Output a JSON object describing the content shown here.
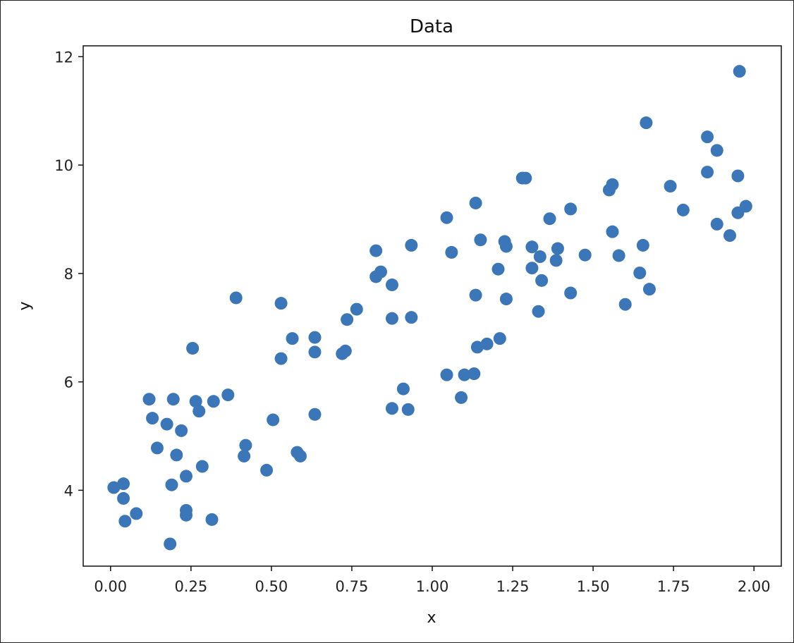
{
  "chart_data": {
    "type": "scatter",
    "title": "Data",
    "xlabel": "x",
    "ylabel": "y",
    "xlim": [
      -0.085,
      2.085
    ],
    "ylim": [
      2.6,
      12.2
    ],
    "x_ticks": [
      0.0,
      0.25,
      0.5,
      0.75,
      1.0,
      1.25,
      1.5,
      1.75,
      2.0
    ],
    "x_tick_labels": [
      "0.00",
      "0.25",
      "0.50",
      "0.75",
      "1.00",
      "1.25",
      "1.50",
      "1.75",
      "2.00"
    ],
    "y_ticks": [
      4,
      6,
      8,
      10,
      12
    ],
    "y_tick_labels": [
      "4",
      "6",
      "8",
      "10",
      "12"
    ],
    "grid": false,
    "marker_color": "#3a76b8",
    "series": [
      {
        "points": [
          [
            0.01,
            4.05
          ],
          [
            0.04,
            4.12
          ],
          [
            0.04,
            3.85
          ],
          [
            0.045,
            3.43
          ],
          [
            0.08,
            3.57
          ],
          [
            0.12,
            5.68
          ],
          [
            0.13,
            5.33
          ],
          [
            0.145,
            4.78
          ],
          [
            0.175,
            5.22
          ],
          [
            0.185,
            3.01
          ],
          [
            0.19,
            4.1
          ],
          [
            0.195,
            5.68
          ],
          [
            0.205,
            4.65
          ],
          [
            0.22,
            5.1
          ],
          [
            0.235,
            4.26
          ],
          [
            0.235,
            3.63
          ],
          [
            0.235,
            3.54
          ],
          [
            0.255,
            6.62
          ],
          [
            0.265,
            5.64
          ],
          [
            0.275,
            5.46
          ],
          [
            0.285,
            4.44
          ],
          [
            0.315,
            3.46
          ],
          [
            0.32,
            5.64
          ],
          [
            0.365,
            5.76
          ],
          [
            0.39,
            7.55
          ],
          [
            0.415,
            4.63
          ],
          [
            0.42,
            4.83
          ],
          [
            0.485,
            4.37
          ],
          [
            0.505,
            5.3
          ],
          [
            0.53,
            7.45
          ],
          [
            0.53,
            6.43
          ],
          [
            0.565,
            6.8
          ],
          [
            0.58,
            4.7
          ],
          [
            0.59,
            4.63
          ],
          [
            0.635,
            6.82
          ],
          [
            0.635,
            6.55
          ],
          [
            0.635,
            5.4
          ],
          [
            0.72,
            6.52
          ],
          [
            0.73,
            6.57
          ],
          [
            0.735,
            7.15
          ],
          [
            0.765,
            7.34
          ],
          [
            0.825,
            8.42
          ],
          [
            0.825,
            7.94
          ],
          [
            0.84,
            8.03
          ],
          [
            0.875,
            7.79
          ],
          [
            0.875,
            7.17
          ],
          [
            0.875,
            5.51
          ],
          [
            0.91,
            5.87
          ],
          [
            0.925,
            5.49
          ],
          [
            0.935,
            7.19
          ],
          [
            0.935,
            8.52
          ],
          [
            1.045,
            9.03
          ],
          [
            1.045,
            6.13
          ],
          [
            1.06,
            8.39
          ],
          [
            1.09,
            5.71
          ],
          [
            1.1,
            6.13
          ],
          [
            1.13,
            6.15
          ],
          [
            1.135,
            7.6
          ],
          [
            1.135,
            9.3
          ],
          [
            1.14,
            6.64
          ],
          [
            1.15,
            8.62
          ],
          [
            1.17,
            6.7
          ],
          [
            1.205,
            8.08
          ],
          [
            1.21,
            6.8
          ],
          [
            1.225,
            8.59
          ],
          [
            1.23,
            8.5
          ],
          [
            1.23,
            7.53
          ],
          [
            1.28,
            9.76
          ],
          [
            1.29,
            9.76
          ],
          [
            1.31,
            8.49
          ],
          [
            1.31,
            8.1
          ],
          [
            1.33,
            7.3
          ],
          [
            1.335,
            8.31
          ],
          [
            1.34,
            7.87
          ],
          [
            1.365,
            9.01
          ],
          [
            1.385,
            8.24
          ],
          [
            1.39,
            8.46
          ],
          [
            1.43,
            9.19
          ],
          [
            1.43,
            7.64
          ],
          [
            1.475,
            8.34
          ],
          [
            1.55,
            9.54
          ],
          [
            1.56,
            9.64
          ],
          [
            1.56,
            8.77
          ],
          [
            1.58,
            8.33
          ],
          [
            1.6,
            7.43
          ],
          [
            1.645,
            8.01
          ],
          [
            1.655,
            8.52
          ],
          [
            1.665,
            10.78
          ],
          [
            1.675,
            7.71
          ],
          [
            1.74,
            9.61
          ],
          [
            1.78,
            9.17
          ],
          [
            1.855,
            10.52
          ],
          [
            1.855,
            9.87
          ],
          [
            1.885,
            10.27
          ],
          [
            1.885,
            8.91
          ],
          [
            1.925,
            8.7
          ],
          [
            1.95,
            9.8
          ],
          [
            1.95,
            9.12
          ],
          [
            1.955,
            11.73
          ],
          [
            1.975,
            9.24
          ]
        ]
      }
    ]
  }
}
